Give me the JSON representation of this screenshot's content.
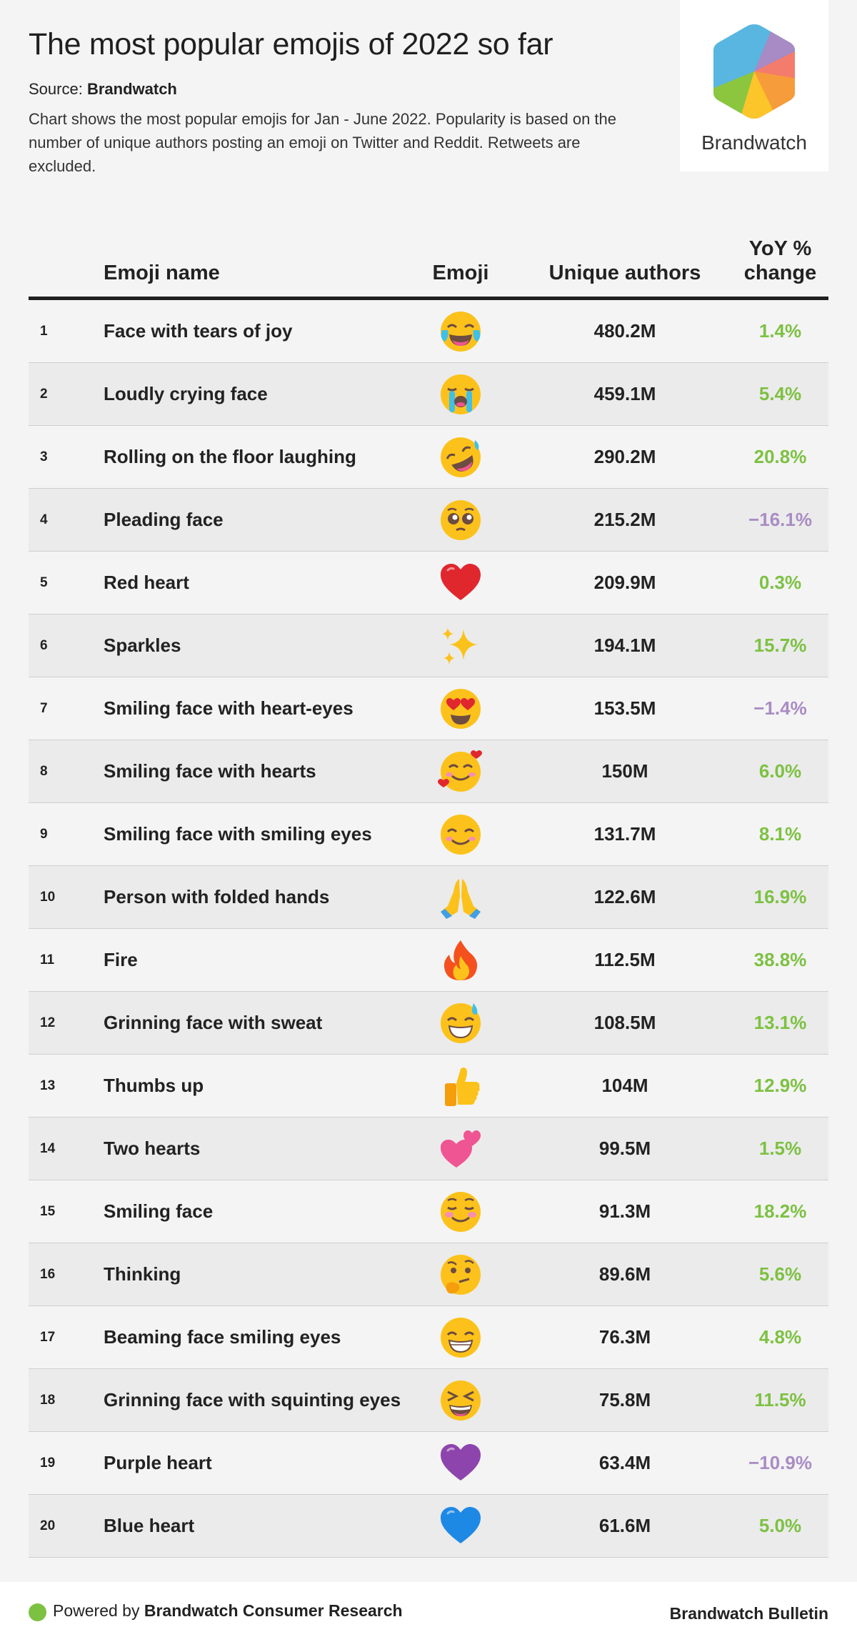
{
  "header": {
    "title": "The most popular emojis of 2022 so far",
    "source_label": "Source:",
    "source_name": "Brandwatch",
    "description": "Chart shows the most popular emojis for Jan - June 2022. Popularity is based on the number of unique authors posting an emoji on Twitter and Reddit. Retweets are excluded."
  },
  "logo": {
    "text": "Brandwatch",
    "icon": "brandwatch-hexagon-logo"
  },
  "colors": {
    "positive": "#7dc142",
    "negative": "#a98cc4",
    "header_rule": "#1f1f1f"
  },
  "chart_data": {
    "type": "table",
    "columns": [
      "Emoji name",
      "Emoji",
      "Unique authors",
      "YoY % change"
    ],
    "rows": [
      {
        "rank": "1",
        "name": "Face with tears of joy",
        "emoji": "face-with-tears-of-joy-icon",
        "authors": "480.2M",
        "yoy": "1.4%"
      },
      {
        "rank": "2",
        "name": "Loudly crying face",
        "emoji": "loudly-crying-face-icon",
        "authors": "459.1M",
        "yoy": "5.4%"
      },
      {
        "rank": "3",
        "name": "Rolling on the floor laughing",
        "emoji": "rolling-on-the-floor-laughing-icon",
        "authors": "290.2M",
        "yoy": "20.8%"
      },
      {
        "rank": "4",
        "name": "Pleading face",
        "emoji": "pleading-face-icon",
        "authors": "215.2M",
        "yoy": "−16.1%"
      },
      {
        "rank": "5",
        "name": "Red heart",
        "emoji": "red-heart-icon",
        "authors": "209.9M",
        "yoy": "0.3%"
      },
      {
        "rank": "6",
        "name": "Sparkles",
        "emoji": "sparkles-icon",
        "authors": "194.1M",
        "yoy": "15.7%"
      },
      {
        "rank": "7",
        "name": "Smiling face with heart-eyes",
        "emoji": "smiling-face-with-heart-eyes-icon",
        "authors": "153.5M",
        "yoy": "−1.4%"
      },
      {
        "rank": "8",
        "name": "Smiling face with hearts",
        "emoji": "smiling-face-with-hearts-icon",
        "authors": "150M",
        "yoy": "6.0%"
      },
      {
        "rank": "9",
        "name": "Smiling face with smiling eyes",
        "emoji": "smiling-face-with-smiling-eyes-icon",
        "authors": "131.7M",
        "yoy": "8.1%"
      },
      {
        "rank": "10",
        "name": "Person with folded hands",
        "emoji": "person-with-folded-hands-icon",
        "authors": "122.6M",
        "yoy": "16.9%"
      },
      {
        "rank": "11",
        "name": "Fire",
        "emoji": "fire-icon",
        "authors": "112.5M",
        "yoy": "38.8%"
      },
      {
        "rank": "12",
        "name": "Grinning face with sweat",
        "emoji": "grinning-face-with-sweat-icon",
        "authors": "108.5M",
        "yoy": "13.1%"
      },
      {
        "rank": "13",
        "name": "Thumbs up",
        "emoji": "thumbs-up-icon",
        "authors": "104M",
        "yoy": "12.9%"
      },
      {
        "rank": "14",
        "name": "Two hearts",
        "emoji": "two-hearts-icon",
        "authors": "99.5M",
        "yoy": "1.5%"
      },
      {
        "rank": "15",
        "name": "Smiling face",
        "emoji": "smiling-face-icon",
        "authors": "91.3M",
        "yoy": "18.2%"
      },
      {
        "rank": "16",
        "name": "Thinking",
        "emoji": "thinking-face-icon",
        "authors": "89.6M",
        "yoy": "5.6%"
      },
      {
        "rank": "17",
        "name": "Beaming face smiling eyes",
        "emoji": "beaming-face-icon",
        "authors": "76.3M",
        "yoy": "4.8%"
      },
      {
        "rank": "18",
        "name": "Grinning face with squinting eyes",
        "emoji": "grinning-squinting-face-icon",
        "authors": "75.8M",
        "yoy": "11.5%"
      },
      {
        "rank": "19",
        "name": "Purple heart",
        "emoji": "purple-heart-icon",
        "authors": "63.4M",
        "yoy": "−10.9%"
      },
      {
        "rank": "20",
        "name": "Blue heart",
        "emoji": "blue-heart-icon",
        "authors": "61.6M",
        "yoy": "5.0%"
      }
    ]
  },
  "footer": {
    "powered_by": "Powered by",
    "product": "Brandwatch Consumer Research",
    "bulletin": "Brandwatch Bulletin"
  }
}
